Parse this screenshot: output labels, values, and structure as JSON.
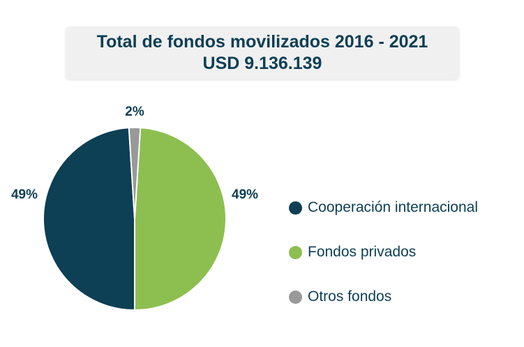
{
  "chart_data": {
    "type": "pie",
    "title": "Total de fondos movilizados 2016 - 2021",
    "subtitle": "USD 9.136.139",
    "slices": [
      {
        "label": "Fondos privados",
        "value": 49,
        "display": "49%",
        "color": "#8cbf50"
      },
      {
        "label": "Cooperación internacional",
        "value": 49,
        "display": "49%",
        "color": "#0d3f55"
      },
      {
        "label": "Otros fondos",
        "value": 2,
        "display": "2%",
        "color": "#999999"
      }
    ],
    "legend_position": "right",
    "legend_order": [
      1,
      0,
      2
    ]
  }
}
